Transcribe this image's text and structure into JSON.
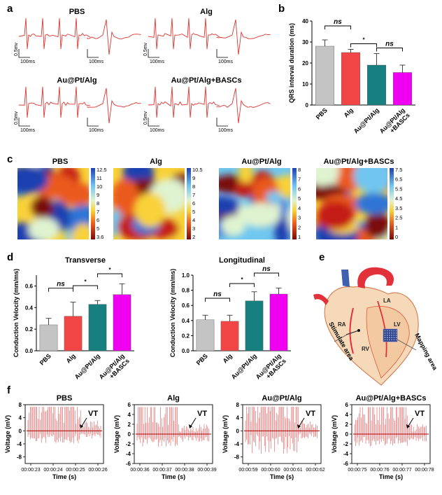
{
  "panel_a": {
    "letter": "a",
    "groups": [
      {
        "title": "PBS",
        "scale_v": "0.5mv",
        "scale_t1": "100ms",
        "scale_t2": "100ms"
      },
      {
        "title": "Alg",
        "scale_v": "0.5mv",
        "scale_t1": "100ms",
        "scale_t2": "100ms"
      },
      {
        "title": "Au@Pt/Alg",
        "scale_v": "0.5mv",
        "scale_t1": "100ms",
        "scale_t2": "100ms"
      },
      {
        "title": "Au@Pt/Alg+BASCs",
        "scale_v": "0.5mv",
        "scale_t1": "100ms",
        "scale_t2": "100ms"
      }
    ],
    "trace_color": "#e0342f"
  },
  "panel_b": {
    "letter": "b",
    "chart_data": {
      "type": "bar",
      "ylabel": "QRS interval duration (ms)",
      "categories": [
        "PBS",
        "Alg",
        "Au@Pt/Alg",
        "Au@Pt/Alg\n+BASCs"
      ],
      "category_lines": [
        [
          "PBS"
        ],
        [
          "Alg"
        ],
        [
          "Au@Pt/Alg"
        ],
        [
          "Au@Pt/Alg",
          "+BASCs"
        ]
      ],
      "values": [
        28,
        25,
        19,
        15.5
      ],
      "errors": [
        3,
        1.5,
        5.5,
        3.5
      ],
      "colors": [
        "#c4c4c4",
        "#f24545",
        "#177f7f",
        "#f000f0"
      ],
      "ylim": [
        0,
        40
      ],
      "yticks": [
        0,
        10,
        20,
        30,
        40
      ],
      "significance": [
        {
          "from": 0,
          "to": 1,
          "label": "ns"
        },
        {
          "from": 1,
          "to": 2,
          "label": "*"
        },
        {
          "from": 2,
          "to": 3,
          "label": "ns"
        }
      ]
    }
  },
  "panel_c": {
    "letter": "c",
    "maps": [
      {
        "title": "PBS",
        "ticks": [
          "12.5",
          "11",
          "10",
          "9",
          "8",
          "7",
          "6",
          "5",
          "3.6"
        ]
      },
      {
        "title": "Alg",
        "ticks": [
          "10.5",
          "9",
          "8",
          "7",
          "6",
          "5",
          "4",
          "3",
          "2"
        ]
      },
      {
        "title": "Au@Pt/Alg",
        "ticks": [
          "8",
          "7",
          "6",
          "5",
          "4",
          "3",
          "2",
          "1"
        ]
      },
      {
        "title": "Au@Pt/Alg+BASCs",
        "ticks": [
          "7.5",
          "6.5",
          "5.5",
          "4.5",
          "3.5",
          "2.5",
          "1",
          "0"
        ]
      }
    ]
  },
  "panel_d": {
    "letter": "d",
    "chart_data": [
      {
        "type": "bar",
        "title": "Transverse",
        "ylabel": "Conduction Velocity (mm/ms)",
        "category_lines": [
          [
            "PBS"
          ],
          [
            "Alg"
          ],
          [
            "Au@Pt/Alg"
          ],
          [
            "Au@Pt/Alg",
            "+BASCs"
          ]
        ],
        "values": [
          0.24,
          0.32,
          0.43,
          0.52
        ],
        "errors": [
          0.06,
          0.13,
          0.035,
          0.1
        ],
        "colors": [
          "#c4c4c4",
          "#f24545",
          "#177f7f",
          "#f000f0"
        ],
        "ylim": [
          0,
          0.7
        ],
        "yticks": [
          "0.0",
          "0.2",
          "0.4",
          "0.6"
        ],
        "ytick_values": [
          0,
          0.2,
          0.4,
          0.6
        ],
        "significance": [
          {
            "from": 0,
            "to": 1,
            "label": "ns"
          },
          {
            "from": 1,
            "to": 2,
            "label": "*"
          },
          {
            "from": 2,
            "to": 3,
            "label": "*"
          }
        ]
      },
      {
        "type": "bar",
        "title": "Longitudinal",
        "ylabel": "Conduction Velocity (mm/ms)",
        "category_lines": [
          [
            "PBS"
          ],
          [
            "Alg"
          ],
          [
            "Au@Pt/Alg"
          ],
          [
            "Au@Pt/Alg",
            "+BASCs"
          ]
        ],
        "values": [
          0.41,
          0.39,
          0.66,
          0.75
        ],
        "errors": [
          0.06,
          0.08,
          0.12,
          0.08
        ],
        "colors": [
          "#c4c4c4",
          "#f24545",
          "#177f7f",
          "#f000f0"
        ],
        "ylim": [
          0,
          1.0
        ],
        "yticks": [
          "0.0",
          "0.2",
          "0.4",
          "0.6",
          "0.8",
          "1.0"
        ],
        "ytick_values": [
          0,
          0.2,
          0.4,
          0.6,
          0.8,
          1.0
        ],
        "significance": [
          {
            "from": 0,
            "to": 1,
            "label": "ns"
          },
          {
            "from": 1,
            "to": 2,
            "label": "*"
          },
          {
            "from": 2,
            "to": 3,
            "label": "ns"
          }
        ]
      }
    ]
  },
  "panel_e": {
    "letter": "e",
    "labels": {
      "la": "LA",
      "ra": "RA",
      "lv": "LV",
      "rv": "RV",
      "stimulate": "Stimulate area",
      "mapping": "Mapping area"
    }
  },
  "panel_f": {
    "letter": "f",
    "ylabel": "Voltage (mV)",
    "xlabel": "Time (s)",
    "vt": "VT",
    "plots": [
      {
        "title": "PBS",
        "yticks": [
          "8",
          "4",
          "0",
          "-4",
          "-8"
        ],
        "ytick_values": [
          8,
          4,
          0,
          -4,
          -8
        ],
        "ylim": [
          -10,
          8
        ],
        "xticks": [
          "00:00:23",
          "00:00:24",
          "00:00:25",
          "00:00:26"
        ]
      },
      {
        "title": "Alg",
        "yticks": [
          "6",
          "4",
          "2",
          "0",
          "-2",
          "-4",
          "-6"
        ],
        "ytick_values": [
          6,
          4,
          2,
          0,
          -2,
          -4,
          -6
        ],
        "ylim": [
          -6,
          6
        ],
        "xticks": [
          "00:00:36",
          "00:00:37",
          "00:00:38",
          "00:00:39"
        ]
      },
      {
        "title": "Au@Pt/Alg",
        "yticks": [
          "8",
          "4",
          "0",
          "-4",
          "-8"
        ],
        "ytick_values": [
          8,
          4,
          0,
          -4,
          -8
        ],
        "ylim": [
          -10,
          8
        ],
        "xticks": [
          "00:00:59",
          "00:00:60",
          "00:00:61",
          "00:00:62"
        ]
      },
      {
        "title": "Au@Pt/Alg+BASCs",
        "yticks": [
          "6",
          "4",
          "2",
          "0",
          "-2",
          "-4",
          "-6"
        ],
        "ytick_values": [
          6,
          4,
          2,
          0,
          -2,
          -4,
          -6
        ],
        "ylim": [
          -6,
          6
        ],
        "xticks": [
          "00:00:75",
          "00:00:76",
          "00:00:77",
          "00:00:78"
        ]
      }
    ]
  }
}
